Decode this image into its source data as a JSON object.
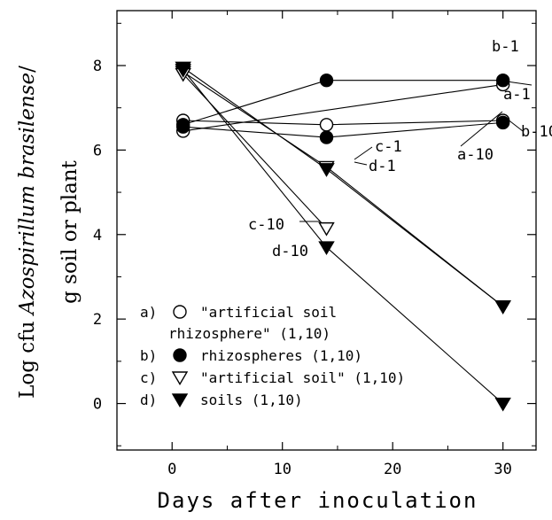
{
  "chart_data": {
    "type": "line",
    "xlabel": "Days after inoculation",
    "ylabel_parts": [
      "Log cfu ",
      "Azospirillum brasilense",
      "/"
    ],
    "ylabel_line2": "g soil or plant",
    "xlim": [
      -5,
      33
    ],
    "ylim": [
      -1.1,
      9.3
    ],
    "x_ticks": [
      "0",
      "10",
      "20",
      "30"
    ],
    "y_ticks": [
      "0",
      "2",
      "4",
      "6",
      "8"
    ],
    "series": [
      {
        "name": "a-1",
        "marker": "open-circle",
        "x": [
          1,
          30
        ],
        "y": [
          6.45,
          7.55
        ]
      },
      {
        "name": "a-10",
        "marker": "open-circle",
        "x": [
          1,
          14,
          30
        ],
        "y": [
          6.7,
          6.6,
          6.7
        ]
      },
      {
        "name": "b-1",
        "marker": "filled-circle",
        "x": [
          1,
          14,
          30
        ],
        "y": [
          6.6,
          7.65,
          7.65
        ]
      },
      {
        "name": "b-10",
        "marker": "filled-circle",
        "x": [
          1,
          14,
          30
        ],
        "y": [
          6.55,
          6.3,
          6.65
        ]
      },
      {
        "name": "c-1",
        "marker": "open-triangle",
        "x": [
          1,
          14,
          30
        ],
        "y": [
          7.85,
          5.6,
          2.3
        ]
      },
      {
        "name": "c-10",
        "marker": "open-triangle",
        "x": [
          1,
          14
        ],
        "y": [
          7.8,
          4.15
        ]
      },
      {
        "name": "d-1",
        "marker": "filled-triangle",
        "x": [
          1,
          14,
          30
        ],
        "y": [
          7.95,
          5.55,
          2.3
        ]
      },
      {
        "name": "d-10",
        "marker": "filled-triangle",
        "x": [
          1,
          14,
          30
        ],
        "y": [
          7.9,
          3.7,
          0
        ]
      }
    ],
    "annotations": [
      "b-1",
      "a-1",
      "b-10",
      "a-10",
      "c-1",
      "d-1",
      "c-10",
      "d-10"
    ],
    "legend": [
      {
        "letter": "a)",
        "marker": "open-circle",
        "lines": [
          "\"artificial soil",
          "rhizosphere\" (1,10)"
        ]
      },
      {
        "letter": "b)",
        "marker": "filled-circle",
        "lines": [
          "rhizospheres (1,10)"
        ]
      },
      {
        "letter": "c)",
        "marker": "open-triangle",
        "lines": [
          "\"artificial soil\" (1,10)"
        ]
      },
      {
        "letter": "d)",
        "marker": "filled-triangle",
        "lines": [
          "soils (1,10)"
        ]
      }
    ],
    "legend_position": "bottom-left",
    "grid": false
  }
}
